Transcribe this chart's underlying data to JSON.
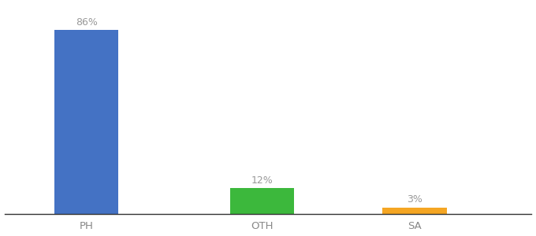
{
  "categories": [
    "PH",
    "OTH",
    "SA"
  ],
  "values": [
    86,
    12,
    3
  ],
  "bar_colors": [
    "#4472c4",
    "#3cb83c",
    "#f5a623"
  ],
  "label_texts": [
    "86%",
    "12%",
    "3%"
  ],
  "background_color": "#ffffff",
  "label_color": "#999999",
  "label_fontsize": 9,
  "tick_fontsize": 9.5,
  "tick_color": "#888888",
  "ylim": [
    0,
    98
  ],
  "bar_width": 0.55,
  "x_positions": [
    1.0,
    2.5,
    3.8
  ],
  "xlim": [
    0.3,
    4.8
  ]
}
